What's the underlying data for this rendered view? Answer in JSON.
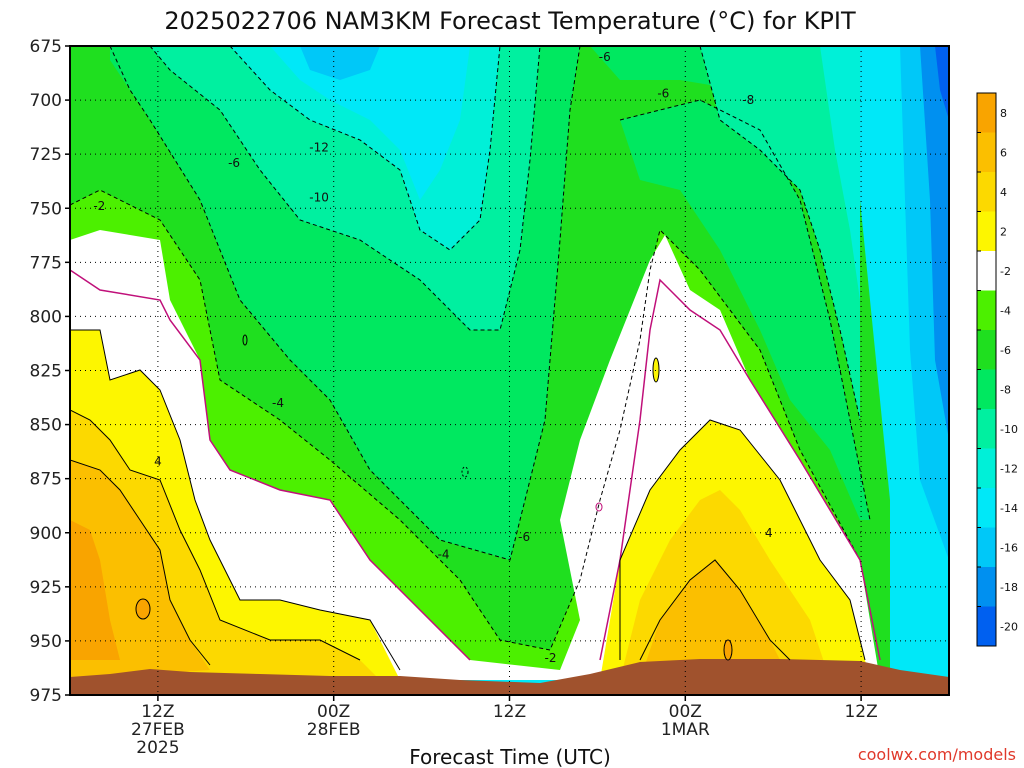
{
  "chart_data": {
    "type": "heatmap",
    "title": "2025022706 NAM3KM Forecast Temperature (°C) for KPIT",
    "xlabel": "Forecast Time (UTC)",
    "ylabel": "",
    "y_axis": {
      "ticks": [
        675,
        700,
        725,
        750,
        775,
        800,
        825,
        850,
        875,
        900,
        925,
        950,
        975
      ],
      "ylim": [
        975,
        675
      ],
      "grid": true
    },
    "x_axis": {
      "ticks": [
        {
          "label": "12Z",
          "sub1": "27FEB",
          "sub2": "2025",
          "hour": 6
        },
        {
          "label": "00Z",
          "sub1": "28FEB",
          "sub2": "",
          "hour": 18
        },
        {
          "label": "12Z",
          "sub1": "",
          "sub2": "",
          "hour": 30
        },
        {
          "label": "00Z",
          "sub1": "1MAR",
          "sub2": "",
          "hour": 42
        },
        {
          "label": "12Z",
          "sub1": "",
          "sub2": "",
          "hour": 54
        }
      ],
      "xlim": [
        0,
        60
      ],
      "grid": true
    },
    "colorbar": {
      "labels": [
        "8",
        "6",
        "4",
        "2",
        "-2",
        "-4",
        "-6",
        "-8",
        "-10",
        "-12",
        "-14",
        "-16",
        "-18",
        "-20"
      ],
      "colors": [
        "#f9a400",
        "#fbbf00",
        "#fcd900",
        "#fdf600",
        "#ffffff",
        "#4cf000",
        "#1fdf1f",
        "#00e860",
        "#00f0a0",
        "#00f0d8",
        "#00e8f8",
        "#00c8f8",
        "#0090f0",
        "#0060f0"
      ]
    },
    "contour_labels": [
      {
        "text": "-6",
        "hour": 36.5,
        "p": 680
      },
      {
        "text": "-6",
        "hour": 40.5,
        "p": 697
      },
      {
        "text": "-8",
        "hour": 46.3,
        "p": 700
      },
      {
        "text": "-6",
        "hour": 11.2,
        "p": 729
      },
      {
        "text": "-12",
        "hour": 17,
        "p": 722
      },
      {
        "text": "-10",
        "hour": 17,
        "p": 745
      },
      {
        "text": "-2",
        "hour": 2,
        "p": 749
      },
      {
        "text": "-4",
        "hour": 14.2,
        "p": 840
      },
      {
        "text": "4",
        "hour": 6,
        "p": 867
      },
      {
        "text": "-6",
        "hour": 31,
        "p": 902
      },
      {
        "text": "-4",
        "hour": 25.5,
        "p": 910
      },
      {
        "text": "4",
        "hour": 47.7,
        "p": 900
      },
      {
        "text": "-2",
        "hour": 32.8,
        "p": 958
      }
    ]
  },
  "credit": "coolwx.com/models"
}
